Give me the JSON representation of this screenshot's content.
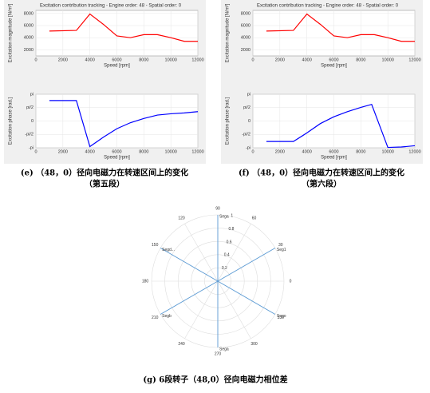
{
  "chart_data": [
    {
      "type": "line",
      "title": "Excitation contribution tracking - Engine order: 48 - Spatial order: 0",
      "xlabel": "Speed [rpm]",
      "ylabel": "Excitation magnitude [N/m²]",
      "x": [
        1000,
        3000,
        4000,
        5000,
        6000,
        7000,
        8000,
        9000,
        10000,
        11000,
        12000
      ],
      "values": [
        5100,
        5200,
        7900,
        6200,
        4300,
        4000,
        4500,
        4500,
        4000,
        3400,
        3400
      ],
      "color": "#ff0000",
      "xlim": [
        0,
        12000
      ],
      "xticks": [
        0,
        2000,
        4000,
        6000,
        8000,
        10000,
        12000
      ],
      "ylim": [
        1000,
        8500
      ],
      "yticks": [
        2000,
        4000,
        6000,
        8000
      ]
    },
    {
      "type": "line",
      "xlabel": "Speed [rpm]",
      "ylabel": "Excitation phase [rad.]",
      "x": [
        1000,
        3000,
        4000,
        5000,
        6000,
        7000,
        8000,
        9000,
        10000,
        11000,
        12000
      ],
      "values": [
        2.4,
        2.4,
        -3.0,
        -1.9,
        -0.9,
        -0.2,
        0.3,
        0.7,
        0.85,
        0.95,
        1.1
      ],
      "color": "#0000ff",
      "xlim": [
        0,
        12000
      ],
      "xticks": [
        0,
        2000,
        4000,
        6000,
        8000,
        10000,
        12000
      ],
      "ylim": [
        -3.14159,
        3.14159
      ],
      "yticks": [
        {
          "value": -3.14159,
          "label": "-pi"
        },
        {
          "value": -1.5708,
          "label": "-pi/2"
        },
        0,
        {
          "value": 1.5708,
          "label": "pi/2"
        },
        {
          "value": 3.14159,
          "label": "pi"
        }
      ]
    },
    {
      "type": "line",
      "title": "Excitation contribution tracking - Engine order: 48 - Spatial order: 0",
      "xlabel": "Speed [rpm]",
      "ylabel": "Excitation magnitude [N/m²]",
      "x": [
        1000,
        3000,
        4000,
        5000,
        6000,
        7000,
        8000,
        9000,
        10000,
        11000,
        12000
      ],
      "values": [
        5100,
        5200,
        7900,
        6200,
        4300,
        4000,
        4500,
        4500,
        4000,
        3400,
        3400
      ],
      "color": "#ff0000",
      "xlim": [
        0,
        12000
      ],
      "xticks": [
        0,
        2000,
        4000,
        6000,
        8000,
        10000,
        12000
      ],
      "ylim": [
        1000,
        8500
      ],
      "yticks": [
        2000,
        4000,
        6000,
        8000
      ]
    },
    {
      "type": "line",
      "xlabel": "Speed [rpm]",
      "ylabel": "Excitation phase [rad.]",
      "x": [
        1000,
        3000,
        4000,
        5000,
        6000,
        7000,
        8000,
        8800,
        10000,
        11000,
        12000
      ],
      "values": [
        -2.4,
        -2.4,
        -1.4,
        -0.3,
        0.5,
        1.1,
        1.6,
        1.95,
        -3.1,
        -3.05,
        -2.9
      ],
      "color": "#0000ff",
      "xlim": [
        0,
        12000
      ],
      "xticks": [
        0,
        2000,
        4000,
        6000,
        8000,
        10000,
        12000
      ],
      "ylim": [
        -3.14159,
        3.14159
      ],
      "yticks": [
        {
          "value": -3.14159,
          "label": "-pi"
        },
        {
          "value": -1.5708,
          "label": "-pi/2"
        },
        0,
        {
          "value": 1.5708,
          "label": "pi/2"
        },
        {
          "value": 3.14159,
          "label": "pi"
        }
      ]
    },
    {
      "type": "polar",
      "categories": [
        "Sega",
        "Seg1",
        "Sego",
        "Sega",
        "Segb",
        "Segd..."
      ],
      "theta": [
        90,
        30,
        330,
        270,
        210,
        150
      ],
      "values": [
        1,
        1,
        1,
        1,
        1,
        1
      ],
      "color": "#5b9bd5",
      "rlim": [
        0,
        1
      ],
      "rticks": [
        0.2,
        0.4,
        0.6,
        0.8,
        1
      ],
      "thetaticks": [
        0,
        30,
        60,
        90,
        120,
        150,
        180,
        210,
        240,
        270,
        300,
        330
      ]
    }
  ],
  "captions": [
    [
      "(e) （48，0）径向电磁力在转速区间上的变化",
      "（第五段）"
    ],
    [
      "(f) （48，0）径向电磁力在转速区间上的变化",
      "（第六段）"
    ],
    [
      "(g) 6段转子（48,0）径向电磁力相位差"
    ]
  ]
}
